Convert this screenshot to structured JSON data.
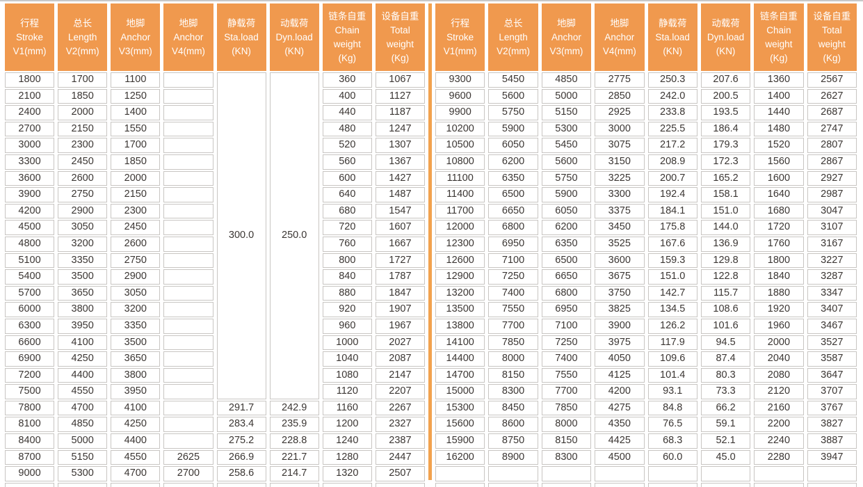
{
  "table_title": "",
  "colors": {
    "header_bg": "#F0994E",
    "header_text": "#FFFFFF",
    "divider": "#F2A24E",
    "grid": "#C8C5C2",
    "text": "#3B3633",
    "cell_bg": "#FFFFFF"
  },
  "columns": [
    [
      "行程",
      "Stroke",
      "V1(mm)"
    ],
    [
      "总长",
      "Length",
      "V2(mm)"
    ],
    [
      "地脚",
      "Anchor",
      "V3(mm)"
    ],
    [
      "地脚",
      "Anchor",
      "V4(mm)"
    ],
    [
      "静载荷",
      "Sta.load",
      "(KN)"
    ],
    [
      "动载荷",
      "Dyn.load",
      "(KN)"
    ],
    [
      "链条自重",
      "Chain",
      "weight",
      "(Kg)"
    ],
    [
      "设备自重",
      "Total",
      "weight",
      "(Kg)"
    ]
  ],
  "left_table": {
    "merged_cells": [
      {
        "col": 4,
        "start_row": 0,
        "row_span": 20,
        "value": "300.0"
      },
      {
        "col": 5,
        "start_row": 0,
        "row_span": 20,
        "value": "250.0"
      }
    ],
    "rows": [
      [
        "1800",
        "1700",
        "1100",
        "",
        null,
        null,
        "360",
        "1067"
      ],
      [
        "2100",
        "1850",
        "1250",
        "",
        null,
        null,
        "400",
        "1127"
      ],
      [
        "2400",
        "2000",
        "1400",
        "",
        null,
        null,
        "440",
        "1187"
      ],
      [
        "2700",
        "2150",
        "1550",
        "",
        null,
        null,
        "480",
        "1247"
      ],
      [
        "3000",
        "2300",
        "1700",
        "",
        null,
        null,
        "520",
        "1307"
      ],
      [
        "3300",
        "2450",
        "1850",
        "",
        null,
        null,
        "560",
        "1367"
      ],
      [
        "3600",
        "2600",
        "2000",
        "",
        null,
        null,
        "600",
        "1427"
      ],
      [
        "3900",
        "2750",
        "2150",
        "",
        null,
        null,
        "640",
        "1487"
      ],
      [
        "4200",
        "2900",
        "2300",
        "",
        null,
        null,
        "680",
        "1547"
      ],
      [
        "4500",
        "3050",
        "2450",
        "",
        null,
        null,
        "720",
        "1607"
      ],
      [
        "4800",
        "3200",
        "2600",
        "",
        null,
        null,
        "760",
        "1667"
      ],
      [
        "5100",
        "3350",
        "2750",
        "",
        null,
        null,
        "800",
        "1727"
      ],
      [
        "5400",
        "3500",
        "2900",
        "",
        null,
        null,
        "840",
        "1787"
      ],
      [
        "5700",
        "3650",
        "3050",
        "",
        null,
        null,
        "880",
        "1847"
      ],
      [
        "6000",
        "3800",
        "3200",
        "",
        null,
        null,
        "920",
        "1907"
      ],
      [
        "6300",
        "3950",
        "3350",
        "",
        null,
        null,
        "960",
        "1967"
      ],
      [
        "6600",
        "4100",
        "3500",
        "",
        null,
        null,
        "1000",
        "2027"
      ],
      [
        "6900",
        "4250",
        "3650",
        "",
        null,
        null,
        "1040",
        "2087"
      ],
      [
        "7200",
        "4400",
        "3800",
        "",
        null,
        null,
        "1080",
        "2147"
      ],
      [
        "7500",
        "4550",
        "3950",
        "",
        null,
        null,
        "1120",
        "2207"
      ],
      [
        "7800",
        "4700",
        "4100",
        "",
        "291.7",
        "242.9",
        "1160",
        "2267"
      ],
      [
        "8100",
        "4850",
        "4250",
        "",
        "283.4",
        "235.9",
        "1200",
        "2327"
      ],
      [
        "8400",
        "5000",
        "4400",
        "",
        "275.2",
        "228.8",
        "1240",
        "2387"
      ],
      [
        "8700",
        "5150",
        "4550",
        "2625",
        "266.9",
        "221.7",
        "1280",
        "2447"
      ],
      [
        "9000",
        "5300",
        "4700",
        "2700",
        "258.6",
        "214.7",
        "1320",
        "2507"
      ],
      [
        "",
        "",
        "",
        "",
        "",
        "",
        "",
        ""
      ]
    ]
  },
  "right_table": {
    "merged_cells": [],
    "rows": [
      [
        "9300",
        "5450",
        "4850",
        "2775",
        "250.3",
        "207.6",
        "1360",
        "2567"
      ],
      [
        "9600",
        "5600",
        "5000",
        "2850",
        "242.0",
        "200.5",
        "1400",
        "2627"
      ],
      [
        "9900",
        "5750",
        "5150",
        "2925",
        "233.8",
        "193.5",
        "1440",
        "2687"
      ],
      [
        "10200",
        "5900",
        "5300",
        "3000",
        "225.5",
        "186.4",
        "1480",
        "2747"
      ],
      [
        "10500",
        "6050",
        "5450",
        "3075",
        "217.2",
        "179.3",
        "1520",
        "2807"
      ],
      [
        "10800",
        "6200",
        "5600",
        "3150",
        "208.9",
        "172.3",
        "1560",
        "2867"
      ],
      [
        "11100",
        "6350",
        "5750",
        "3225",
        "200.7",
        "165.2",
        "1600",
        "2927"
      ],
      [
        "11400",
        "6500",
        "5900",
        "3300",
        "192.4",
        "158.1",
        "1640",
        "2987"
      ],
      [
        "11700",
        "6650",
        "6050",
        "3375",
        "184.1",
        "151.0",
        "1680",
        "3047"
      ],
      [
        "12000",
        "6800",
        "6200",
        "3450",
        "175.8",
        "144.0",
        "1720",
        "3107"
      ],
      [
        "12300",
        "6950",
        "6350",
        "3525",
        "167.6",
        "136.9",
        "1760",
        "3167"
      ],
      [
        "12600",
        "7100",
        "6500",
        "3600",
        "159.3",
        "129.8",
        "1800",
        "3227"
      ],
      [
        "12900",
        "7250",
        "6650",
        "3675",
        "151.0",
        "122.8",
        "1840",
        "3287"
      ],
      [
        "13200",
        "7400",
        "6800",
        "3750",
        "142.7",
        "115.7",
        "1880",
        "3347"
      ],
      [
        "13500",
        "7550",
        "6950",
        "3825",
        "134.5",
        "108.6",
        "1920",
        "3407"
      ],
      [
        "13800",
        "7700",
        "7100",
        "3900",
        "126.2",
        "101.6",
        "1960",
        "3467"
      ],
      [
        "14100",
        "7850",
        "7250",
        "3975",
        "117.9",
        "94.5",
        "2000",
        "3527"
      ],
      [
        "14400",
        "8000",
        "7400",
        "4050",
        "109.6",
        "87.4",
        "2040",
        "3587"
      ],
      [
        "14700",
        "8150",
        "7550",
        "4125",
        "101.4",
        "80.3",
        "2080",
        "3647"
      ],
      [
        "15000",
        "8300",
        "7700",
        "4200",
        "93.1",
        "73.3",
        "2120",
        "3707"
      ],
      [
        "15300",
        "8450",
        "7850",
        "4275",
        "84.8",
        "66.2",
        "2160",
        "3767"
      ],
      [
        "15600",
        "8600",
        "8000",
        "4350",
        "76.5",
        "59.1",
        "2200",
        "3827"
      ],
      [
        "15900",
        "8750",
        "8150",
        "4425",
        "68.3",
        "52.1",
        "2240",
        "3887"
      ],
      [
        "16200",
        "8900",
        "8300",
        "4500",
        "60.0",
        "45.0",
        "2280",
        "3947"
      ],
      [
        "",
        "",
        "",
        "",
        "",
        "",
        "",
        ""
      ],
      [
        "",
        "",
        "",
        "",
        "",
        "",
        "",
        ""
      ]
    ]
  }
}
